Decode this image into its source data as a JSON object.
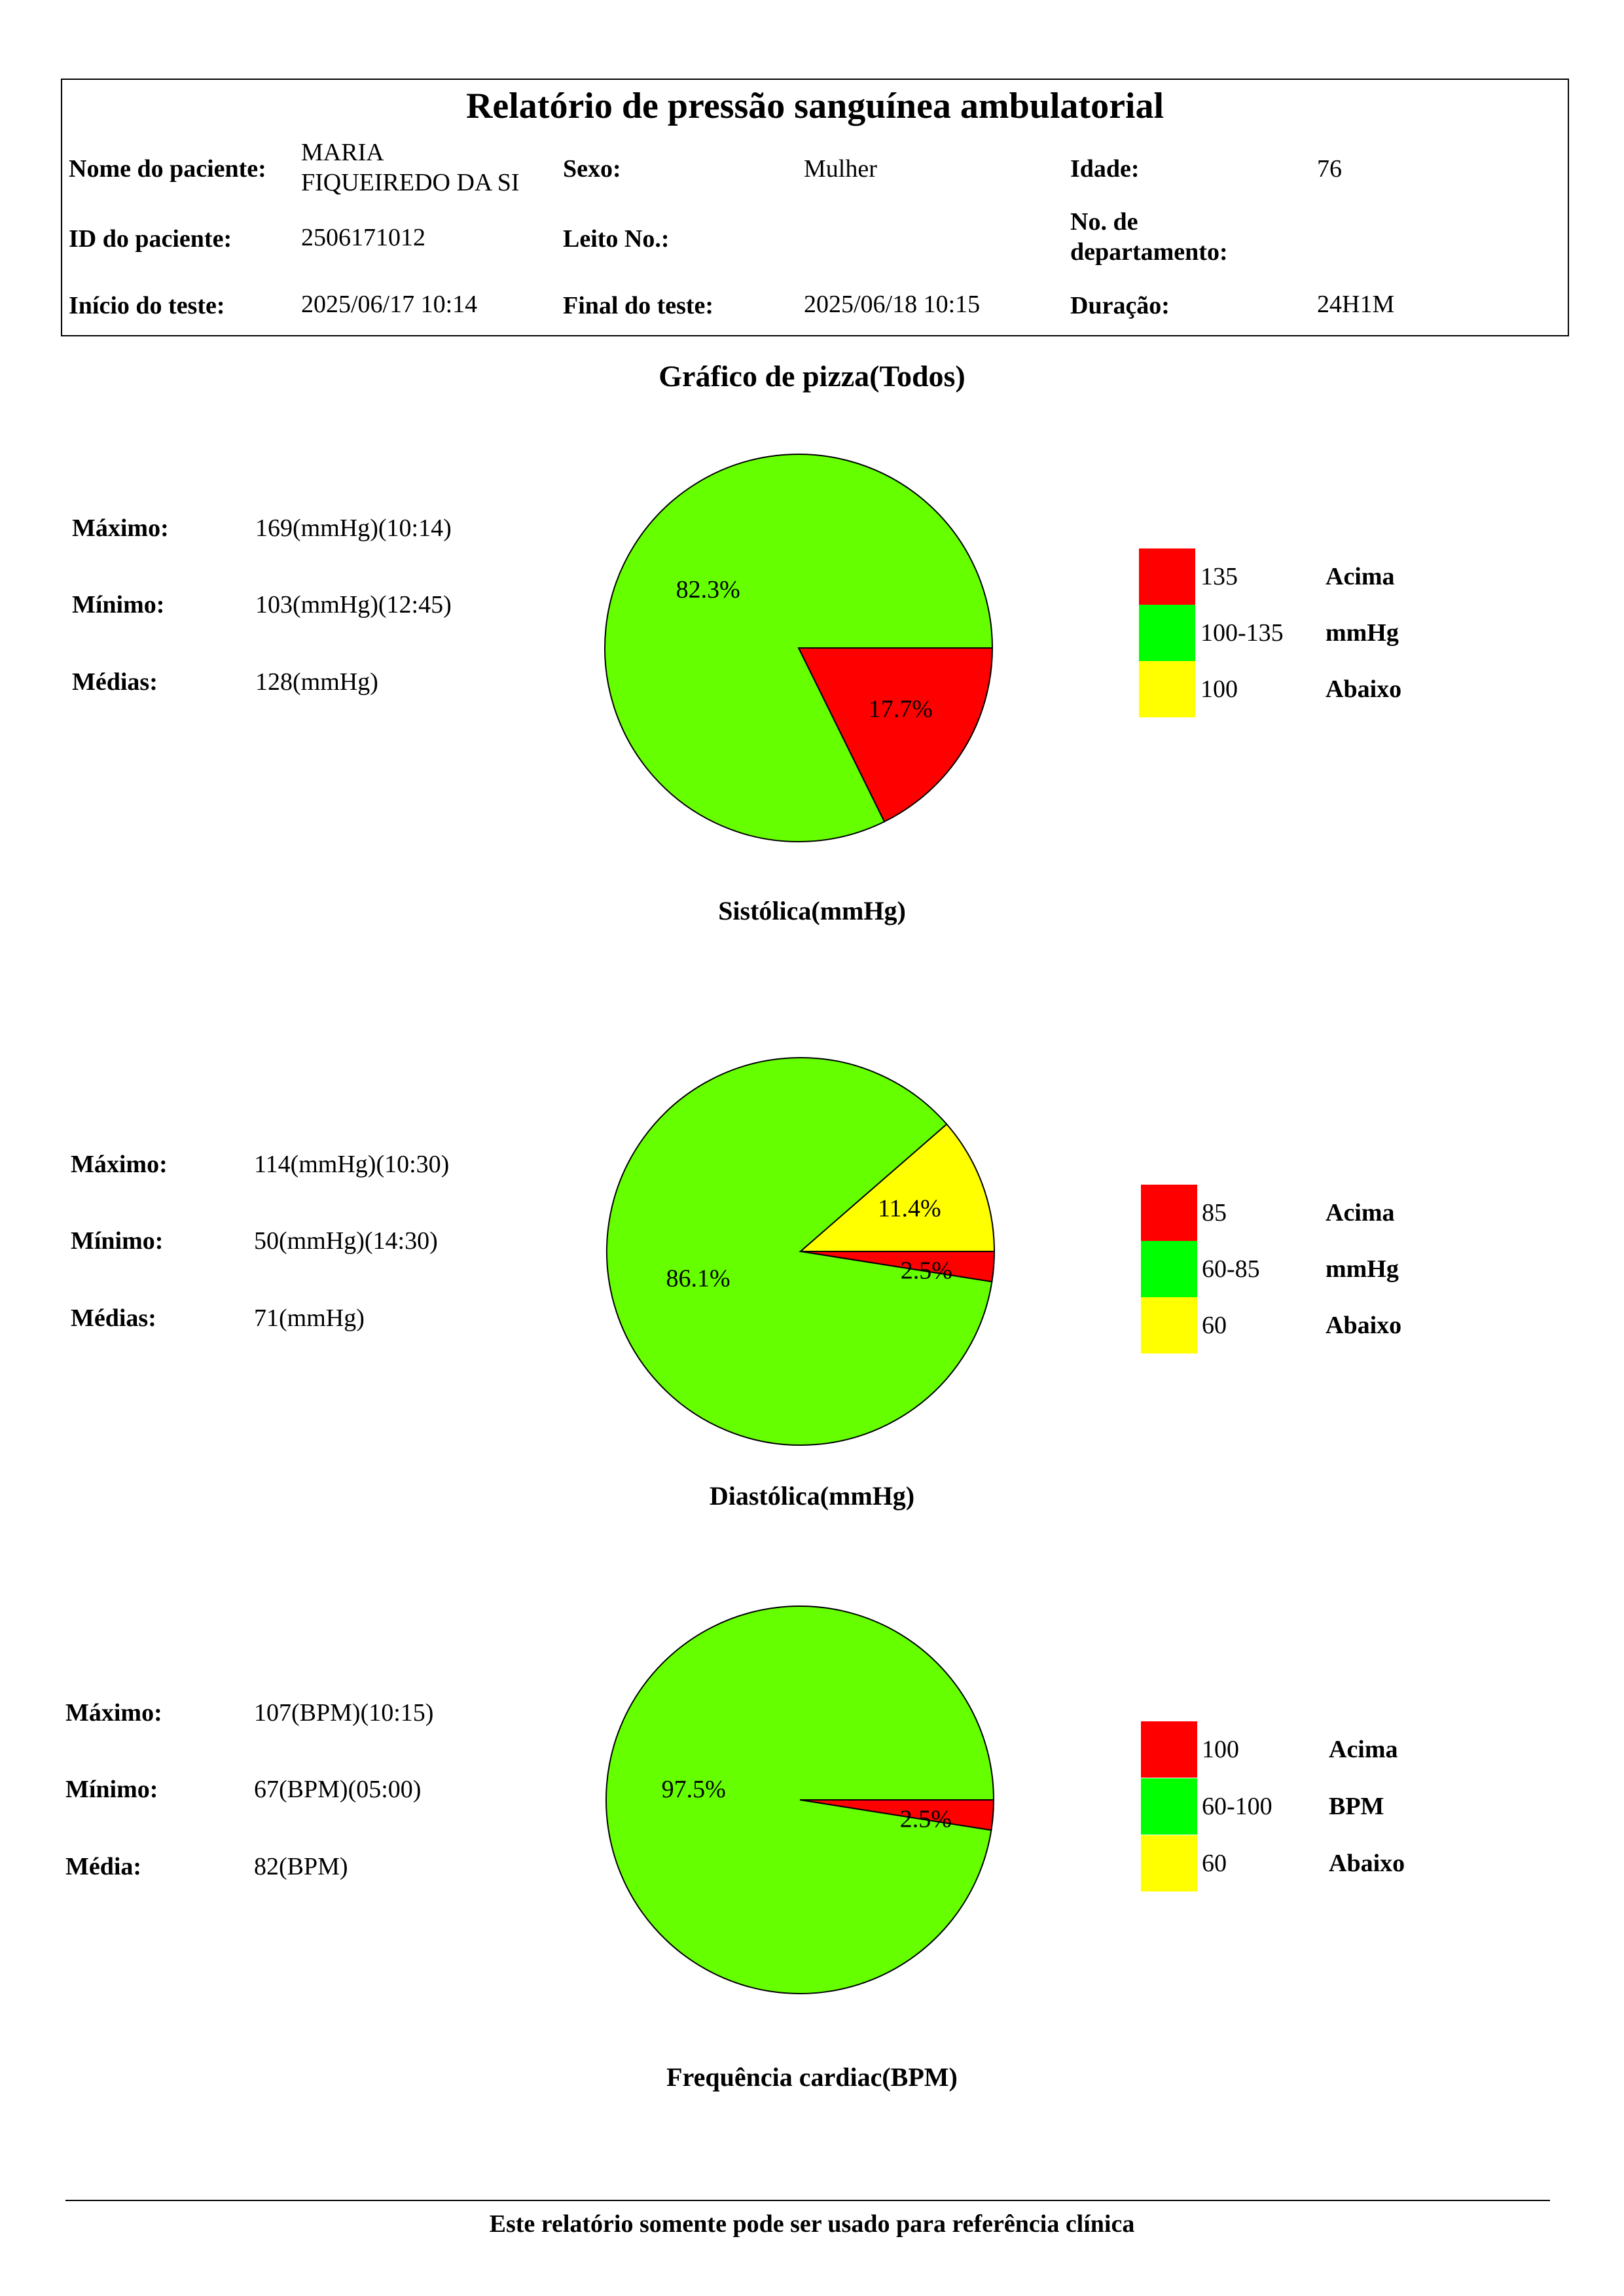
{
  "header": {
    "title": "Relatório de pressão sanguínea ambulatorial",
    "patient_name_label": "Nome do paciente:",
    "patient_name_line1": "MARIA",
    "patient_name_line2": "FIQUEIREDO  DA SI",
    "sex_label": "Sexo:",
    "sex_value": "Mulher",
    "age_label": "Idade:",
    "age_value": "76",
    "patient_id_label": "ID do paciente:",
    "patient_id_value": "2506171012",
    "bed_label": "Leito No.:",
    "bed_value": "",
    "department_label_line1": "No. de",
    "department_label_line2": "departamento:",
    "department_value": "",
    "start_label": "Início do teste:",
    "start_value": "2025/06/17 10:14",
    "end_label": "Final do teste:",
    "end_value": "2025/06/18 10:15",
    "duration_label": "Duração:",
    "duration_value": "24H1M"
  },
  "page_title": "Gráfico de pizza(Todos)",
  "chart_data": [
    {
      "type": "pie",
      "title": "Sistólica(mmHg)",
      "stats": [
        {
          "label": "Máximo:",
          "value": "169(mmHg)(10:14)"
        },
        {
          "label": "Mínimo:",
          "value": "103(mmHg)(12:45)"
        },
        {
          "label": "Médias:",
          "value": "128(mmHg)"
        }
      ],
      "slices": [
        {
          "category": "above",
          "value": 17.7,
          "label": "17.7%",
          "color": "#ff0000"
        },
        {
          "category": "normal",
          "value": 82.3,
          "label": "82.3%",
          "color": "#66ff00"
        },
        {
          "category": "below",
          "value": 0,
          "label": "",
          "color": "#ffff00"
        }
      ],
      "legend": [
        {
          "range": "135",
          "label": "Acima",
          "color": "#ff0000"
        },
        {
          "range": "100-135",
          "label": "mmHg",
          "color": "#00ff00"
        },
        {
          "range": "100",
          "label": "Abaixo",
          "color": "#ffff00"
        }
      ]
    },
    {
      "type": "pie",
      "title": "Diastólica(mmHg)",
      "stats": [
        {
          "label": "Máximo:",
          "value": "114(mmHg)(10:30)"
        },
        {
          "label": "Mínimo:",
          "value": "50(mmHg)(14:30)"
        },
        {
          "label": "Médias:",
          "value": "71(mmHg)"
        }
      ],
      "slices": [
        {
          "category": "above",
          "value": 2.5,
          "label": "2.5%",
          "color": "#ff0000"
        },
        {
          "category": "normal",
          "value": 86.1,
          "label": "86.1%",
          "color": "#66ff00"
        },
        {
          "category": "below",
          "value": 11.4,
          "label": "11.4%",
          "color": "#ffff00"
        }
      ],
      "legend": [
        {
          "range": "85",
          "label": "Acima",
          "color": "#ff0000"
        },
        {
          "range": "60-85",
          "label": "mmHg",
          "color": "#00ff00"
        },
        {
          "range": "60",
          "label": "Abaixo",
          "color": "#ffff00"
        }
      ]
    },
    {
      "type": "pie",
      "title": "Frequência cardiac(BPM)",
      "stats": [
        {
          "label": "Máximo:",
          "value": "107(BPM)(10:15)"
        },
        {
          "label": "Mínimo:",
          "value": "67(BPM)(05:00)"
        },
        {
          "label": "Média:",
          "value": "82(BPM)"
        }
      ],
      "slices": [
        {
          "category": "above",
          "value": 2.5,
          "label": "2.5%",
          "color": "#ff0000"
        },
        {
          "category": "normal",
          "value": 97.5,
          "label": "97.5%",
          "color": "#66ff00"
        },
        {
          "category": "below",
          "value": 0,
          "label": "",
          "color": "#ffff00"
        }
      ],
      "legend": [
        {
          "range": "100",
          "label": "Acima",
          "color": "#ff0000"
        },
        {
          "range": "60-100",
          "label": "BPM",
          "color": "#00ff00"
        },
        {
          "range": "60",
          "label": "Abaixo",
          "color": "#ffff00"
        }
      ]
    }
  ],
  "footer": {
    "note": "Este relatório somente pode ser usado para referência clínica"
  }
}
